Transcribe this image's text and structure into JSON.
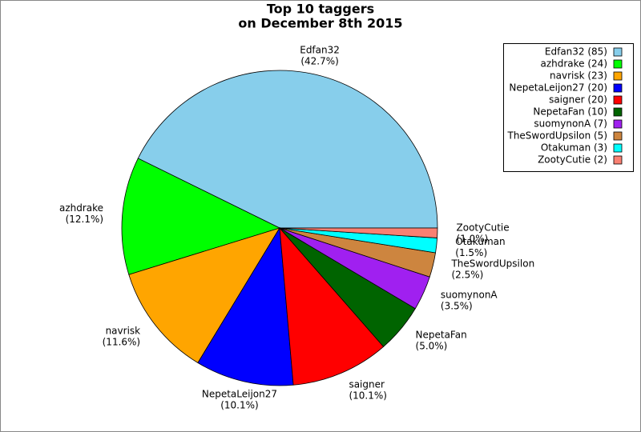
{
  "chart_data": {
    "type": "pie",
    "title": [
      "Top 10 taggers",
      "on December 8th 2015"
    ],
    "categories": [
      "Edfan32",
      "azhdrake",
      "navrisk",
      "NepetaLeijon27",
      "saigner",
      "NepetaFan",
      "suomynonA",
      "TheSwordUpsilon",
      "Otakuman",
      "ZootyCutie"
    ],
    "values": [
      85,
      24,
      23,
      20,
      20,
      10,
      7,
      5,
      3,
      2
    ],
    "percent_labels": [
      "(42.7%)",
      "(12.1%)",
      "(11.6%)",
      "(10.1%)",
      "(10.1%)",
      "(5.0%)",
      "(3.5%)",
      "(2.5%)",
      "(1.5%)",
      "(1.0%)"
    ],
    "legend_labels": [
      "Edfan32 (85)",
      "azhdrake (24)",
      "navrisk (23)",
      "NepetaLeijon27 (20)",
      "saigner (20)",
      "NepetaFan (10)",
      "suomynonA (7)",
      "TheSwordUpsilon (5)",
      "Otakuman (3)",
      "ZootyCutie (2)"
    ],
    "colors": [
      "#87ceeb",
      "#00ff00",
      "#ffa500",
      "#0000ff",
      "#ff0000",
      "#006400",
      "#a020f0",
      "#cd853f",
      "#00ffff",
      "#fa8072"
    ],
    "legend": "upper right"
  }
}
